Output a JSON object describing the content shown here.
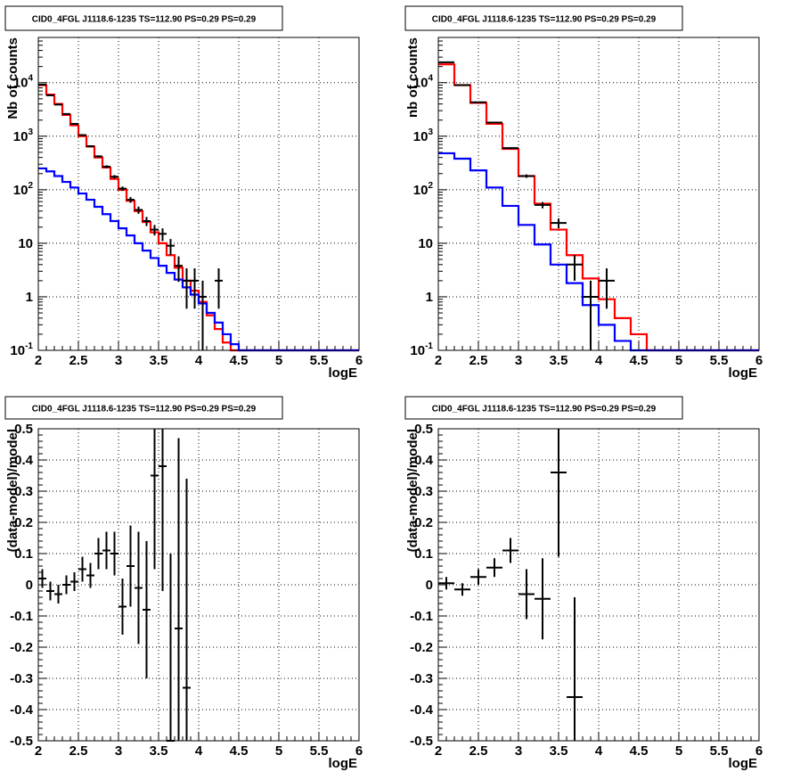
{
  "chart_data": [
    {
      "id": "tl",
      "type": "line",
      "title": "CID0_4FGL J1118.6-1235 TS=112.90 PS=0.29 PS=0.29",
      "xlabel": "logE",
      "ylabel": "Nb of counts",
      "xlim": [
        2,
        6
      ],
      "ylim": [
        0.1,
        70000
      ],
      "log_y": true,
      "x_ticks": [
        "2",
        "2.5",
        "3",
        "3.5",
        "4",
        "4.5",
        "5",
        "5.5",
        "6"
      ],
      "y_ticks": [
        {
          "v": 0.1,
          "label": "10",
          "sup": "-1"
        },
        {
          "v": 1,
          "label": "1",
          "sup": ""
        },
        {
          "v": 10,
          "label": "10",
          "sup": ""
        },
        {
          "v": 100,
          "label": "10",
          "sup": "2"
        },
        {
          "v": 1000,
          "label": "10",
          "sup": "3"
        },
        {
          "v": 10000,
          "label": "10",
          "sup": "4"
        }
      ],
      "grid": true,
      "bin_width": 0.1,
      "series": [
        {
          "color": "#ff0000",
          "style": "step",
          "bin_low": 2.0,
          "values": [
            9000,
            6000,
            4000,
            2500,
            1600,
            1000,
            640,
            400,
            260,
            160,
            100,
            62,
            40,
            25,
            16,
            10,
            6,
            3.5,
            2,
            1.3,
            0.8,
            0.45,
            0.25,
            0.14,
            0.1,
            0.1,
            0.1,
            0.1,
            0.1,
            0.1,
            0.1,
            0.1,
            0.1,
            0.1,
            0.1,
            0.1,
            0.1,
            0.1,
            0.1,
            0.1
          ]
        },
        {
          "color": "#0000ff",
          "style": "step",
          "bin_low": 2.0,
          "values": [
            250,
            220,
            180,
            140,
            110,
            85,
            65,
            48,
            35,
            26,
            19,
            14,
            10,
            7.3,
            5.3,
            3.8,
            2.8,
            2.1,
            1.5,
            1.1,
            0.75,
            0.5,
            0.33,
            0.2,
            0.13,
            0.1,
            0.1,
            0.1,
            0.1,
            0.1,
            0.1,
            0.1,
            0.1,
            0.1,
            0.1,
            0.1,
            0.1,
            0.1,
            0.1,
            0.1
          ]
        },
        {
          "color": "#000000",
          "style": "points",
          "bin_low": 2.0,
          "values": [
            9200,
            5800,
            3900,
            2600,
            1700,
            1050,
            650,
            420,
            270,
            175,
            105,
            65,
            42,
            26,
            18,
            15,
            9,
            3.8,
            2,
            2,
            1,
            0,
            2
          ],
          "err_low": [
            100,
            80,
            65,
            50,
            40,
            32,
            25,
            20,
            16,
            13,
            10,
            8,
            6.5,
            5,
            4,
            4,
            3,
            1.9,
            1.4,
            1.4,
            1,
            0,
            1.4
          ],
          "err_high": [
            100,
            80,
            65,
            50,
            40,
            32,
            25,
            20,
            16,
            13,
            10,
            8,
            6.5,
            5,
            4,
            4,
            3,
            1.9,
            1.4,
            1.4,
            1,
            0,
            1.4
          ]
        }
      ]
    },
    {
      "id": "tr",
      "type": "line",
      "title": "CID0_4FGL J1118.6-1235 TS=112.90 PS=0.29 PS=0.29",
      "xlabel": "logE",
      "ylabel": "nb of counts",
      "xlim": [
        2,
        6
      ],
      "ylim": [
        0.1,
        70000
      ],
      "log_y": true,
      "x_ticks": [
        "2",
        "2.5",
        "3",
        "3.5",
        "4",
        "4.5",
        "5",
        "5.5",
        "6"
      ],
      "y_ticks": [
        {
          "v": 0.1,
          "label": "10",
          "sup": "-1"
        },
        {
          "v": 1,
          "label": "1",
          "sup": ""
        },
        {
          "v": 10,
          "label": "10",
          "sup": ""
        },
        {
          "v": 100,
          "label": "10",
          "sup": "2"
        },
        {
          "v": 1000,
          "label": "10",
          "sup": "3"
        },
        {
          "v": 10000,
          "label": "10",
          "sup": "4"
        }
      ],
      "grid": true,
      "bin_width": 0.2,
      "series": [
        {
          "color": "#ff0000",
          "style": "step",
          "bin_low": 2.0,
          "values": [
            22000,
            9000,
            4200,
            1700,
            580,
            180,
            55,
            18,
            6,
            2.2,
            0.9,
            0.4,
            0.2,
            0.1,
            0.1,
            0.1,
            0.1,
            0.1,
            0.1,
            0.1
          ]
        },
        {
          "color": "#0000ff",
          "style": "step",
          "bin_low": 2.0,
          "values": [
            480,
            380,
            230,
            110,
            50,
            22,
            9.5,
            4,
            1.8,
            0.7,
            0.3,
            0.15,
            0.1,
            0.1,
            0.1,
            0.1,
            0.1,
            0.1,
            0.1,
            0.1
          ]
        },
        {
          "color": "#000000",
          "style": "points",
          "bin_low": 2.0,
          "values": [
            24000,
            9000,
            4300,
            1800,
            600,
            180,
            52,
            24,
            4,
            1,
            2
          ],
          "err_low": [
            155,
            95,
            65,
            42,
            24,
            13,
            7,
            5,
            2,
            1,
            1.4
          ],
          "err_high": [
            155,
            95,
            65,
            42,
            24,
            13,
            7,
            5,
            2,
            1,
            1.4
          ]
        }
      ]
    },
    {
      "id": "bl",
      "type": "scatter",
      "title": "CID0_4FGL J1118.6-1235 TS=112.90 PS=0.29 PS=0.29",
      "xlabel": "logE",
      "ylabel": "(data-model)/model",
      "xlim": [
        2,
        6
      ],
      "ylim": [
        -0.5,
        0.5
      ],
      "log_y": false,
      "x_ticks": [
        "2",
        "2.5",
        "3",
        "3.5",
        "4",
        "4.5",
        "5",
        "5.5",
        "6"
      ],
      "y_ticks": [
        {
          "v": -0.5,
          "label": "-0.5"
        },
        {
          "v": -0.4,
          "label": "-0.4"
        },
        {
          "v": -0.3,
          "label": "-0.3"
        },
        {
          "v": -0.2,
          "label": "-0.2"
        },
        {
          "v": -0.1,
          "label": "-0.1"
        },
        {
          "v": 0,
          "label": "0"
        },
        {
          "v": 0.1,
          "label": "0.1"
        },
        {
          "v": 0.2,
          "label": "0.2"
        },
        {
          "v": 0.3,
          "label": "0.3"
        },
        {
          "v": 0.4,
          "label": "0.4"
        },
        {
          "v": 0.5,
          "label": "0.5"
        }
      ],
      "grid": true,
      "bin_width": 0.1,
      "series": [
        {
          "color": "#000000",
          "style": "points",
          "bin_low": 2.0,
          "values": [
            0.02,
            -0.02,
            -0.03,
            0.0,
            0.01,
            0.05,
            0.03,
            0.1,
            0.11,
            0.1,
            -0.07,
            0.06,
            -0.01,
            -0.08,
            0.35,
            0.38,
            -0.5,
            -0.14,
            -0.33
          ],
          "err_low": [
            0.03,
            0.03,
            0.03,
            0.03,
            0.03,
            0.04,
            0.04,
            0.05,
            0.06,
            0.07,
            0.09,
            0.13,
            0.18,
            0.22,
            0.3,
            0.4,
            0.6,
            0.6,
            0.6
          ],
          "err_high": [
            0.03,
            0.03,
            0.03,
            0.03,
            0.03,
            0.04,
            0.04,
            0.05,
            0.06,
            0.07,
            0.09,
            0.13,
            0.18,
            0.22,
            0.3,
            0.4,
            0.6,
            0.61,
            0.67
          ]
        }
      ]
    },
    {
      "id": "br",
      "type": "scatter",
      "title": "CID0_4FGL J1118.6-1235 TS=112.90 PS=0.29 PS=0.29",
      "xlabel": "logE",
      "ylabel": "(data-model)/model",
      "xlim": [
        2,
        6
      ],
      "ylim": [
        -0.5,
        0.5
      ],
      "log_y": false,
      "x_ticks": [
        "2",
        "2.5",
        "3",
        "3.5",
        "4",
        "4.5",
        "5",
        "5.5",
        "6"
      ],
      "y_ticks": [
        {
          "v": -0.5,
          "label": "-0.5"
        },
        {
          "v": -0.4,
          "label": "-0.4"
        },
        {
          "v": -0.3,
          "label": "-0.3"
        },
        {
          "v": -0.2,
          "label": "-0.2"
        },
        {
          "v": -0.1,
          "label": "-0.1"
        },
        {
          "v": 0,
          "label": "0"
        },
        {
          "v": 0.1,
          "label": "0.1"
        },
        {
          "v": 0.2,
          "label": "0.2"
        },
        {
          "v": 0.3,
          "label": "0.3"
        },
        {
          "v": 0.4,
          "label": "0.4"
        },
        {
          "v": 0.5,
          "label": "0.5"
        }
      ],
      "grid": true,
      "bin_width": 0.2,
      "series": [
        {
          "color": "#000000",
          "style": "points",
          "bin_low": 2.0,
          "values": [
            0.005,
            -0.015,
            0.025,
            0.055,
            0.11,
            -0.03,
            -0.045,
            0.36,
            -0.36
          ],
          "err_low": [
            0.02,
            0.02,
            0.025,
            0.03,
            0.04,
            0.08,
            0.13,
            0.27,
            0.32
          ],
          "err_high": [
            0.02,
            0.02,
            0.025,
            0.03,
            0.04,
            0.08,
            0.13,
            0.27,
            0.32
          ]
        }
      ]
    }
  ]
}
